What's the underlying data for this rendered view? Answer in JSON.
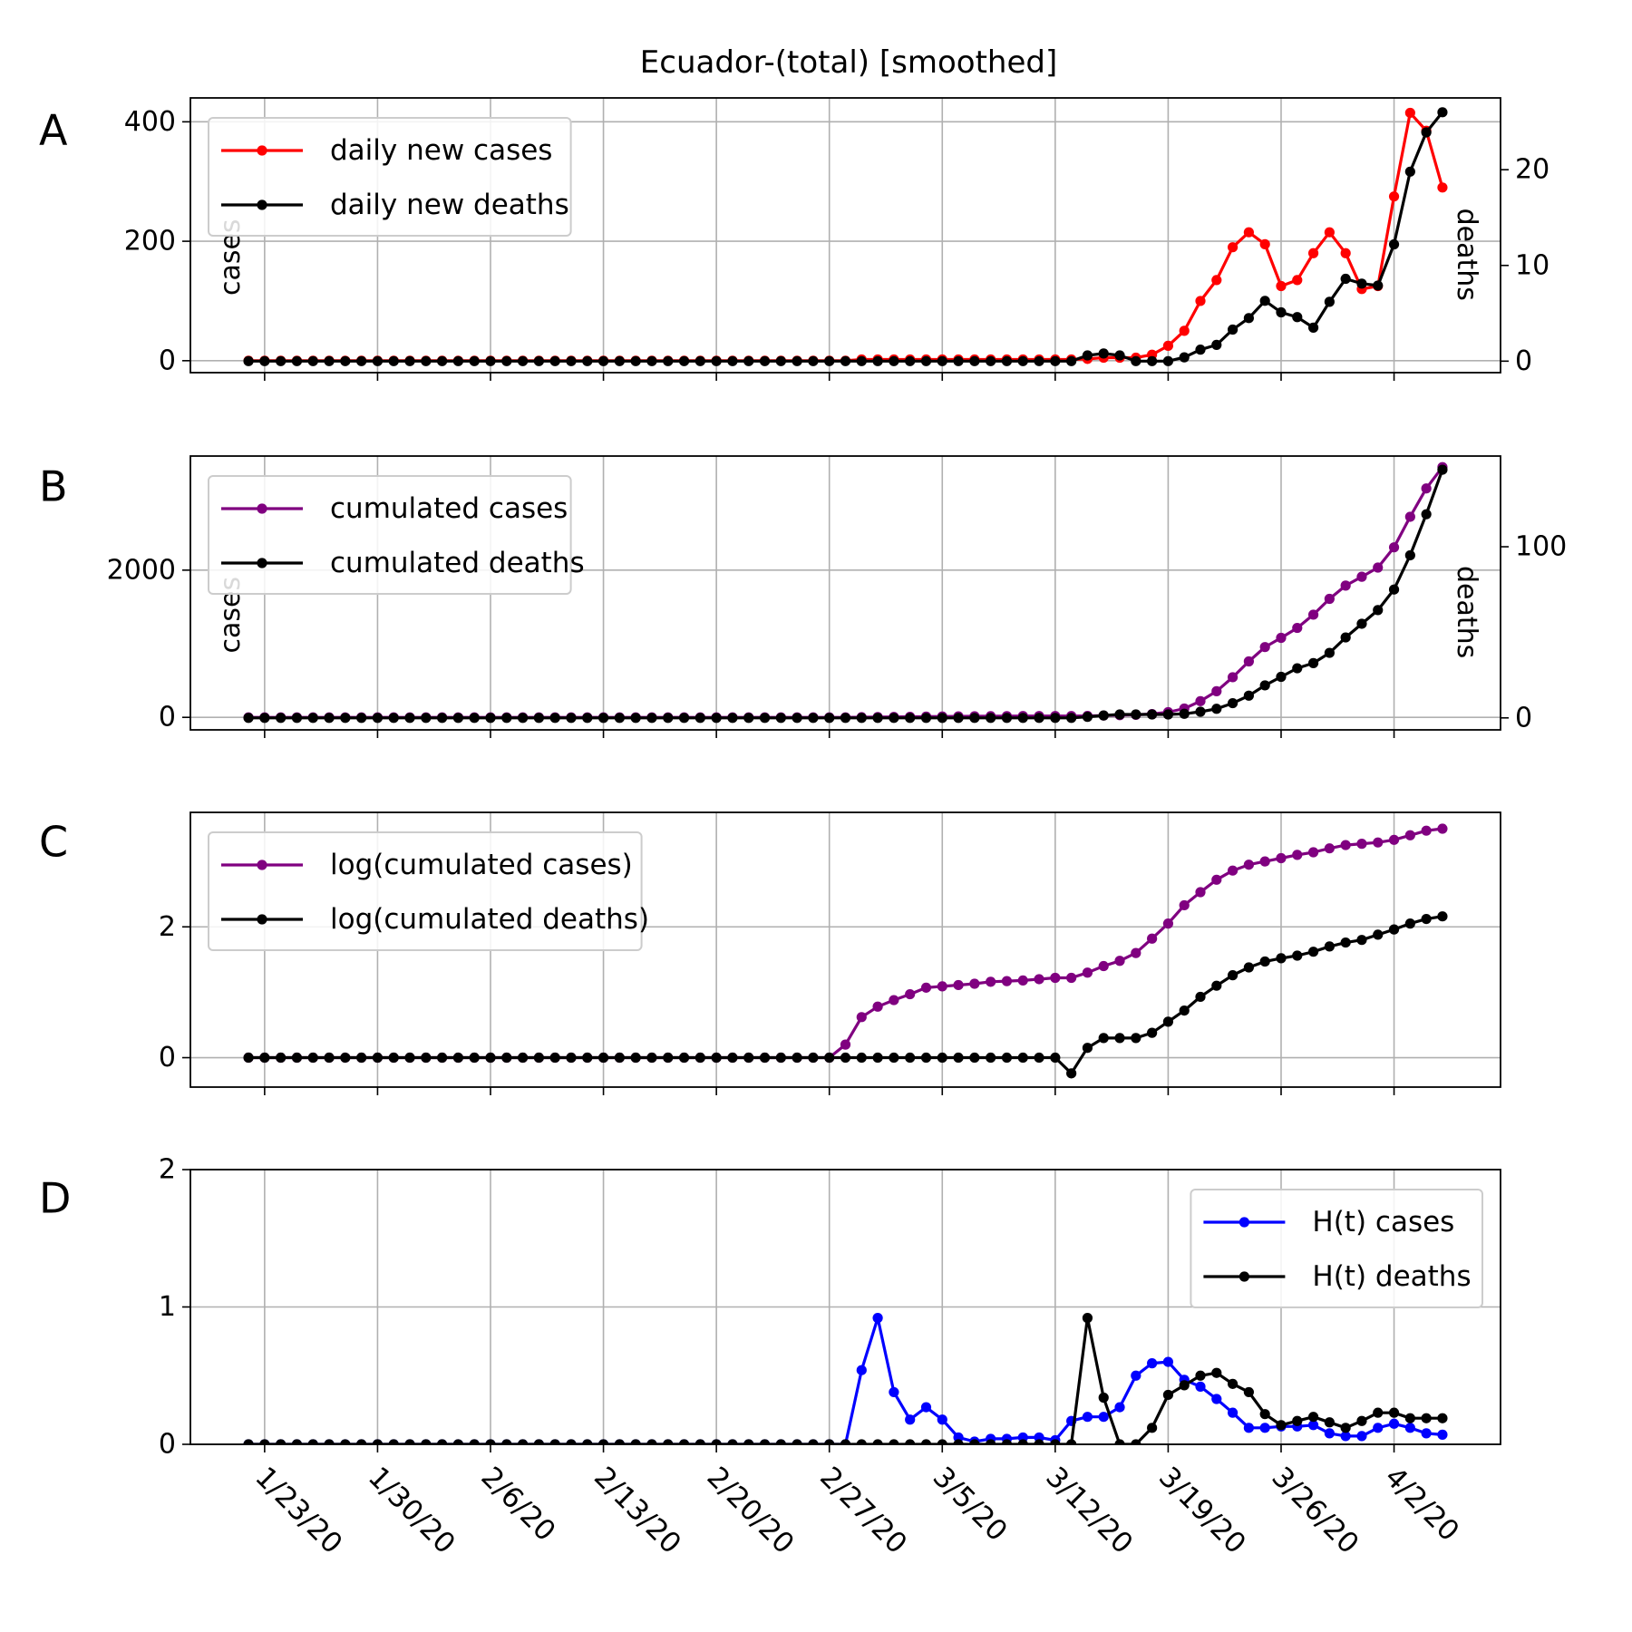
{
  "figure": {
    "title": "Ecuador-(total) [smoothed]",
    "x_ticks": [
      "1/23/20",
      "1/30/20",
      "2/6/20",
      "2/13/20",
      "2/20/20",
      "2/27/20",
      "3/5/20",
      "3/12/20",
      "3/19/20",
      "3/26/20",
      "4/2/20"
    ]
  },
  "colors": {
    "red": "#ff0000",
    "black": "#000000",
    "purple": "#800080",
    "blue": "#0000ff",
    "grid": "#b0b0b0"
  },
  "chart_data": [
    {
      "panel": "A",
      "type": "line",
      "x_start": "1/22/20",
      "x_end": "4/3/20",
      "left_axis": {
        "label": "cases",
        "ticks": [
          0,
          200,
          400
        ],
        "ylim": [
          -20,
          440
        ]
      },
      "right_axis": {
        "label": "deaths",
        "ticks": [
          0,
          10,
          20
        ],
        "ylim": [
          -1.2,
          27.5
        ]
      },
      "legend_position": "upper-left",
      "series": [
        {
          "name": "daily new cases",
          "axis": "left",
          "color": "#ff0000",
          "values": [
            0,
            0,
            0,
            0,
            0,
            0,
            0,
            0,
            0,
            0,
            0,
            0,
            0,
            0,
            0,
            0,
            0,
            0,
            0,
            0,
            0,
            0,
            0,
            0,
            0,
            0,
            0,
            0,
            0,
            0,
            0,
            0,
            0,
            0,
            0,
            0,
            0,
            0,
            2,
            2,
            2,
            2,
            2,
            2,
            2,
            2,
            2,
            2,
            2,
            2,
            2,
            2,
            3,
            5,
            5,
            5,
            10,
            25,
            50,
            100,
            135,
            190,
            215,
            195,
            125,
            135,
            180,
            215,
            180,
            120,
            125,
            275,
            415,
            385,
            290
          ]
        },
        {
          "name": "daily new deaths",
          "axis": "right",
          "color": "#000000",
          "values": [
            0,
            0,
            0,
            0,
            0,
            0,
            0,
            0,
            0,
            0,
            0,
            0,
            0,
            0,
            0,
            0,
            0,
            0,
            0,
            0,
            0,
            0,
            0,
            0,
            0,
            0,
            0,
            0,
            0,
            0,
            0,
            0,
            0,
            0,
            0,
            0,
            0,
            0,
            0,
            0,
            0,
            0,
            0,
            0,
            0,
            0,
            0,
            0,
            0,
            0,
            0,
            0,
            0.6,
            0.8,
            0.6,
            0,
            0,
            0,
            0.4,
            1.2,
            1.7,
            3.3,
            4.5,
            6.3,
            5.1,
            4.6,
            3.5,
            6.2,
            8.6,
            8.1,
            7.9,
            12.2,
            19.8,
            23.9,
            26
          ]
        }
      ]
    },
    {
      "panel": "B",
      "type": "line",
      "x_start": "1/22/20",
      "x_end": "4/3/20",
      "left_axis": {
        "label": "cases",
        "ticks": [
          0,
          2000
        ],
        "ylim": [
          -170,
          3550
        ]
      },
      "right_axis": {
        "label": "deaths",
        "ticks": [
          0,
          100
        ],
        "ylim": [
          -7,
          153
        ]
      },
      "legend_position": "upper-left",
      "series": [
        {
          "name": "cumulated cases",
          "axis": "left",
          "color": "#800080",
          "values": [
            0,
            0,
            0,
            0,
            0,
            0,
            0,
            0,
            0,
            0,
            0,
            0,
            0,
            0,
            0,
            0,
            0,
            0,
            0,
            0,
            0,
            0,
            0,
            0,
            0,
            0,
            0,
            0,
            0,
            0,
            0,
            0,
            0,
            0,
            0,
            0,
            0,
            0,
            2,
            4,
            6,
            8,
            10,
            12,
            14,
            15,
            16,
            17,
            18,
            18,
            18,
            18,
            20,
            25,
            30,
            35,
            45,
            70,
            120,
            220,
            355,
            545,
            760,
            955,
            1080,
            1215,
            1395,
            1610,
            1790,
            1910,
            2035,
            2310,
            2725,
            3110,
            3400
          ]
        },
        {
          "name": "cumulated deaths",
          "axis": "right",
          "color": "#000000",
          "values": [
            0,
            0,
            0,
            0,
            0,
            0,
            0,
            0,
            0,
            0,
            0,
            0,
            0,
            0,
            0,
            0,
            0,
            0,
            0,
            0,
            0,
            0,
            0,
            0,
            0,
            0,
            0,
            0,
            0,
            0,
            0,
            0,
            0,
            0,
            0,
            0,
            0,
            0,
            0,
            0,
            0,
            0,
            0,
            0,
            0,
            0,
            0,
            0,
            0,
            0,
            0,
            0,
            0.6,
            1.4,
            2,
            2,
            2,
            2,
            2.4,
            3.6,
            5.3,
            8.6,
            13,
            19,
            24,
            29,
            32,
            38,
            47,
            55,
            63,
            75,
            95,
            119,
            145
          ]
        }
      ]
    },
    {
      "panel": "C",
      "type": "line",
      "x_start": "1/22/20",
      "x_end": "4/3/20",
      "left_axis": {
        "label": "",
        "ticks": [
          0,
          2
        ],
        "ylim": [
          -0.45,
          3.75
        ]
      },
      "legend_position": "upper-left",
      "series": [
        {
          "name": "log(cumulated cases)",
          "axis": "left",
          "color": "#800080",
          "values": [
            0,
            0,
            0,
            0,
            0,
            0,
            0,
            0,
            0,
            0,
            0,
            0,
            0,
            0,
            0,
            0,
            0,
            0,
            0,
            0,
            0,
            0,
            0,
            0,
            0,
            0,
            0,
            0,
            0,
            0,
            0,
            0,
            0,
            0,
            0,
            0,
            0,
            0.2,
            0.62,
            0.78,
            0.88,
            0.97,
            1.07,
            1.09,
            1.11,
            1.13,
            1.16,
            1.17,
            1.18,
            1.2,
            1.22,
            1.22,
            1.3,
            1.4,
            1.48,
            1.6,
            1.82,
            2.05,
            2.33,
            2.53,
            2.72,
            2.86,
            2.95,
            3.0,
            3.05,
            3.1,
            3.14,
            3.2,
            3.25,
            3.27,
            3.29,
            3.33,
            3.4,
            3.47,
            3.5
          ]
        },
        {
          "name": "log(cumulated deaths)",
          "axis": "left",
          "color": "#000000",
          "values": [
            0,
            0,
            0,
            0,
            0,
            0,
            0,
            0,
            0,
            0,
            0,
            0,
            0,
            0,
            0,
            0,
            0,
            0,
            0,
            0,
            0,
            0,
            0,
            0,
            0,
            0,
            0,
            0,
            0,
            0,
            0,
            0,
            0,
            0,
            0,
            0,
            0,
            0,
            0,
            0,
            0,
            0,
            0,
            0,
            0,
            0,
            0,
            0,
            0,
            0,
            0,
            -0.24,
            0.15,
            0.3,
            0.3,
            0.3,
            0.38,
            0.55,
            0.72,
            0.93,
            1.1,
            1.26,
            1.38,
            1.47,
            1.52,
            1.56,
            1.62,
            1.7,
            1.76,
            1.8,
            1.88,
            1.96,
            2.05,
            2.12,
            2.16
          ]
        }
      ]
    },
    {
      "panel": "D",
      "type": "line",
      "x_start": "1/22/20",
      "x_end": "4/3/20",
      "left_axis": {
        "label": "",
        "ticks": [
          0,
          1,
          2
        ],
        "ylim": [
          0,
          2
        ]
      },
      "legend_position": "upper-right",
      "series": [
        {
          "name": "H(t) cases",
          "axis": "left",
          "color": "#0000ff",
          "values": [
            0,
            0,
            0,
            0,
            0,
            0,
            0,
            0,
            0,
            0,
            0,
            0,
            0,
            0,
            0,
            0,
            0,
            0,
            0,
            0,
            0,
            0,
            0,
            0,
            0,
            0,
            0,
            0,
            0,
            0,
            0,
            0,
            0,
            0,
            0,
            0,
            0,
            0,
            0.54,
            0.92,
            0.38,
            0.18,
            0.27,
            0.18,
            0.05,
            0.02,
            0.04,
            0.04,
            0.05,
            0.05,
            0.03,
            0.17,
            0.2,
            0.2,
            0.27,
            0.5,
            0.59,
            0.6,
            0.47,
            0.42,
            0.33,
            0.23,
            0.12,
            0.12,
            0.13,
            0.13,
            0.14,
            0.08,
            0.06,
            0.06,
            0.12,
            0.15,
            0.12,
            0.08,
            0.07
          ]
        },
        {
          "name": "H(t) deaths",
          "axis": "left",
          "color": "#000000",
          "values": [
            0,
            0,
            0,
            0,
            0,
            0,
            0,
            0,
            0,
            0,
            0,
            0,
            0,
            0,
            0,
            0,
            0,
            0,
            0,
            0,
            0,
            0,
            0,
            0,
            0,
            0,
            0,
            0,
            0,
            0,
            0,
            0,
            0,
            0,
            0,
            0,
            0,
            0,
            0,
            0,
            0,
            0,
            0,
            0,
            0,
            0,
            0,
            0,
            0,
            0,
            0,
            0,
            0.92,
            0.34,
            0,
            0,
            0.12,
            0.36,
            0.43,
            0.5,
            0.52,
            0.44,
            0.38,
            0.22,
            0.14,
            0.17,
            0.2,
            0.16,
            0.12,
            0.17,
            0.23,
            0.23,
            0.19,
            0.19,
            0.19
          ]
        }
      ]
    }
  ]
}
